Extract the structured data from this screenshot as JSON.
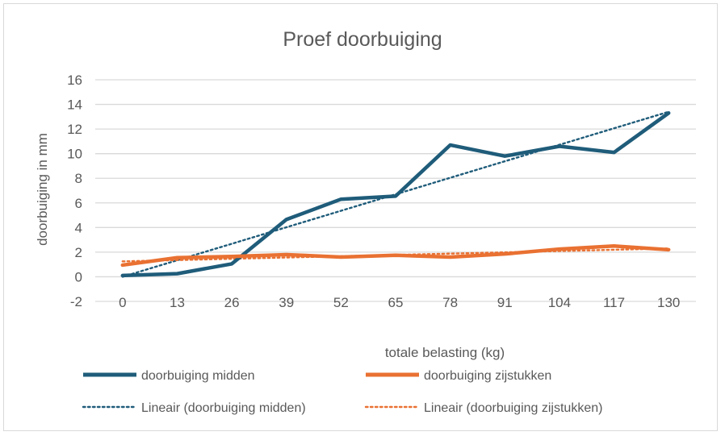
{
  "chart_data": {
    "type": "line",
    "title": "Proef doorbuiging",
    "xlabel": "totale belasting (kg)",
    "ylabel": "doorbuiging in mm",
    "categories": [
      "0",
      "13",
      "26",
      "39",
      "52",
      "65",
      "78",
      "91",
      "104",
      "117",
      "130"
    ],
    "ylim": [
      -2,
      16
    ],
    "yticks": [
      "-2",
      "0",
      "2",
      "4",
      "6",
      "8",
      "10",
      "12",
      "14",
      "16"
    ],
    "grid": true,
    "legend_position": "bottom",
    "series": [
      {
        "name": "doorbuiging midden",
        "values": [
          0.1,
          0.25,
          1.05,
          4.65,
          6.3,
          6.55,
          10.7,
          9.8,
          10.6,
          10.1,
          13.3
        ],
        "color": "#1f5c7a",
        "style": "solid"
      },
      {
        "name": "doorbuiging zijstukken",
        "values": [
          0.95,
          1.55,
          1.65,
          1.8,
          1.6,
          1.75,
          1.6,
          1.85,
          2.25,
          2.5,
          2.2
        ],
        "color": "#e97132",
        "style": "solid"
      }
    ],
    "trendlines": [
      {
        "name": "Lineair (doorbuiging midden)",
        "start": 0.0,
        "end": 13.4,
        "color": "#1f5c7a",
        "style": "dotted"
      },
      {
        "name": "Lineair (doorbuiging zijstukken)",
        "start": 1.25,
        "end": 2.3,
        "color": "#e97132",
        "style": "dotted"
      }
    ]
  }
}
